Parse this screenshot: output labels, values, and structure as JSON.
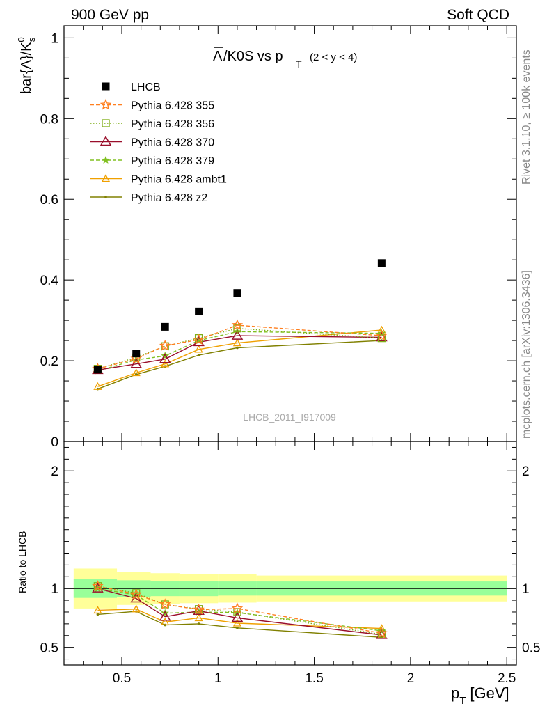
{
  "header": {
    "left": "900 GeV pp",
    "right": "Soft QCD"
  },
  "side_labels": {
    "rivet": "Rivet 3.1.10, ≥ 100k events",
    "mcplots": "mcplots.cern.ch [arXiv:1306.3436]"
  },
  "watermark": "LHCB_2011_I917009",
  "colors": {
    "LHCB": "#000000",
    "p355": "#ff7f1f",
    "p356": "#7fae16",
    "p370": "#9a0f2b",
    "p379": "#80c020",
    "ambt1": "#f0a000",
    "z2": "#808000",
    "band_inner": "#99ff99",
    "band_outer": "#ffff99"
  },
  "chart_data": [
    {
      "type": "scatter",
      "title": "Λ̄/K0S vs p_T (2 < y < 4)",
      "title_main": "/K0S vs p",
      "title_sub": "T",
      "title_range": "(2 < y < 4)",
      "ylabel": "bar{Λ}/K",
      "ylabel_sup": "0",
      "ylabel_sub": "s",
      "xlim": [
        0.2,
        2.55
      ],
      "ylim": [
        0,
        1.03
      ],
      "yticks": [
        0,
        0.2,
        0.4,
        0.6,
        0.8,
        1
      ],
      "ytick_labels": [
        "0",
        "0.2",
        "0.4",
        "0.6",
        "0.8",
        "1"
      ],
      "legend_position": "top-left",
      "x": [
        0.375,
        0.575,
        0.725,
        0.9,
        1.1,
        1.85
      ],
      "series": [
        {
          "key": "LHCB",
          "name": "LHCB",
          "style": "data",
          "values": [
            0.178,
            0.218,
            0.284,
            0.322,
            0.368,
            0.442
          ]
        },
        {
          "key": "p355",
          "name": "Pythia 6.428 355",
          "style": "star-dashed",
          "values": [
            0.18,
            0.205,
            0.237,
            0.252,
            0.288,
            0.262
          ]
        },
        {
          "key": "p356",
          "name": "Pythia 6.428 356",
          "style": "square-dotted",
          "values": [
            0.18,
            0.208,
            0.236,
            0.256,
            0.28,
            0.256
          ]
        },
        {
          "key": "p370",
          "name": "Pythia 6.428 370",
          "style": "triangle-solid",
          "values": [
            0.177,
            0.192,
            0.204,
            0.246,
            0.262,
            0.258
          ]
        },
        {
          "key": "p379",
          "name": "Pythia 6.428 379",
          "style": "smallstar-dashed",
          "values": [
            0.175,
            0.202,
            0.212,
            0.25,
            0.272,
            0.268
          ]
        },
        {
          "key": "ambt1",
          "name": "Pythia 6.428 ambt1",
          "style": "smalltriangle-solid",
          "values": [
            0.136,
            0.17,
            0.192,
            0.228,
            0.244,
            0.276
          ]
        },
        {
          "key": "z2",
          "name": "Pythia 6.428 z2",
          "style": "dot-solid",
          "values": [
            0.13,
            0.166,
            0.186,
            0.214,
            0.232,
            0.25
          ]
        }
      ]
    },
    {
      "type": "scatter",
      "ylabel": "Ratio to LHCB",
      "xlabel": "p",
      "xlabel_sub": "T",
      "xlabel_unit": "[GeV]",
      "xlim": [
        0.2,
        2.55
      ],
      "ylim": [
        0.35,
        2.25
      ],
      "xticks": [
        0.5,
        1,
        1.5,
        2,
        2.5
      ],
      "xtick_labels": [
        "0.5",
        "1",
        "1.5",
        "2",
        "2.5"
      ],
      "yticks": [
        0.5,
        1,
        2
      ],
      "ytick_labels": [
        "0.5",
        "1",
        "2"
      ],
      "bands": [
        {
          "x0": 0.25,
          "x1": 0.475,
          "inner": [
            0.92,
            1.08
          ],
          "outer": [
            0.83,
            1.17
          ]
        },
        {
          "x0": 0.475,
          "x1": 0.65,
          "inner": [
            0.93,
            1.07
          ],
          "outer": [
            0.86,
            1.14
          ]
        },
        {
          "x0": 0.65,
          "x1": 0.8,
          "inner": [
            0.935,
            1.065
          ],
          "outer": [
            0.87,
            1.13
          ]
        },
        {
          "x0": 0.8,
          "x1": 1.0,
          "inner": [
            0.935,
            1.065
          ],
          "outer": [
            0.875,
            1.125
          ]
        },
        {
          "x0": 1.0,
          "x1": 1.2,
          "inner": [
            0.94,
            1.06
          ],
          "outer": [
            0.88,
            1.12
          ]
        },
        {
          "x0": 1.2,
          "x1": 2.5,
          "inner": [
            0.94,
            1.06
          ],
          "outer": [
            0.89,
            1.11
          ]
        }
      ],
      "x": [
        0.375,
        0.575,
        0.725,
        0.9,
        1.1,
        1.85
      ],
      "series": [
        {
          "key": "p355",
          "name": "Pythia 6.428 355",
          "style": "star-dashed",
          "values": [
            1.02,
            0.95,
            0.865,
            0.82,
            0.83,
            0.62
          ]
        },
        {
          "key": "p356",
          "name": "Pythia 6.428 356",
          "style": "square-dotted",
          "values": [
            1.02,
            0.96,
            0.865,
            0.825,
            0.8,
            0.61
          ]
        },
        {
          "key": "p370",
          "name": "Pythia 6.428 370",
          "style": "triangle-solid",
          "values": [
            1.0,
            0.915,
            0.76,
            0.81,
            0.75,
            0.605
          ]
        },
        {
          "key": "p379",
          "name": "Pythia 6.428 379",
          "style": "smallstar-dashed",
          "values": [
            1.0,
            0.945,
            0.79,
            0.8,
            0.795,
            0.64
          ]
        },
        {
          "key": "ambt1",
          "name": "Pythia 6.428 ambt1",
          "style": "smalltriangle-solid",
          "values": [
            0.815,
            0.825,
            0.715,
            0.75,
            0.705,
            0.66
          ]
        },
        {
          "key": "z2",
          "name": "Pythia 6.428 z2",
          "style": "dot-solid",
          "values": [
            0.78,
            0.805,
            0.69,
            0.7,
            0.665,
            0.585
          ]
        }
      ]
    }
  ]
}
